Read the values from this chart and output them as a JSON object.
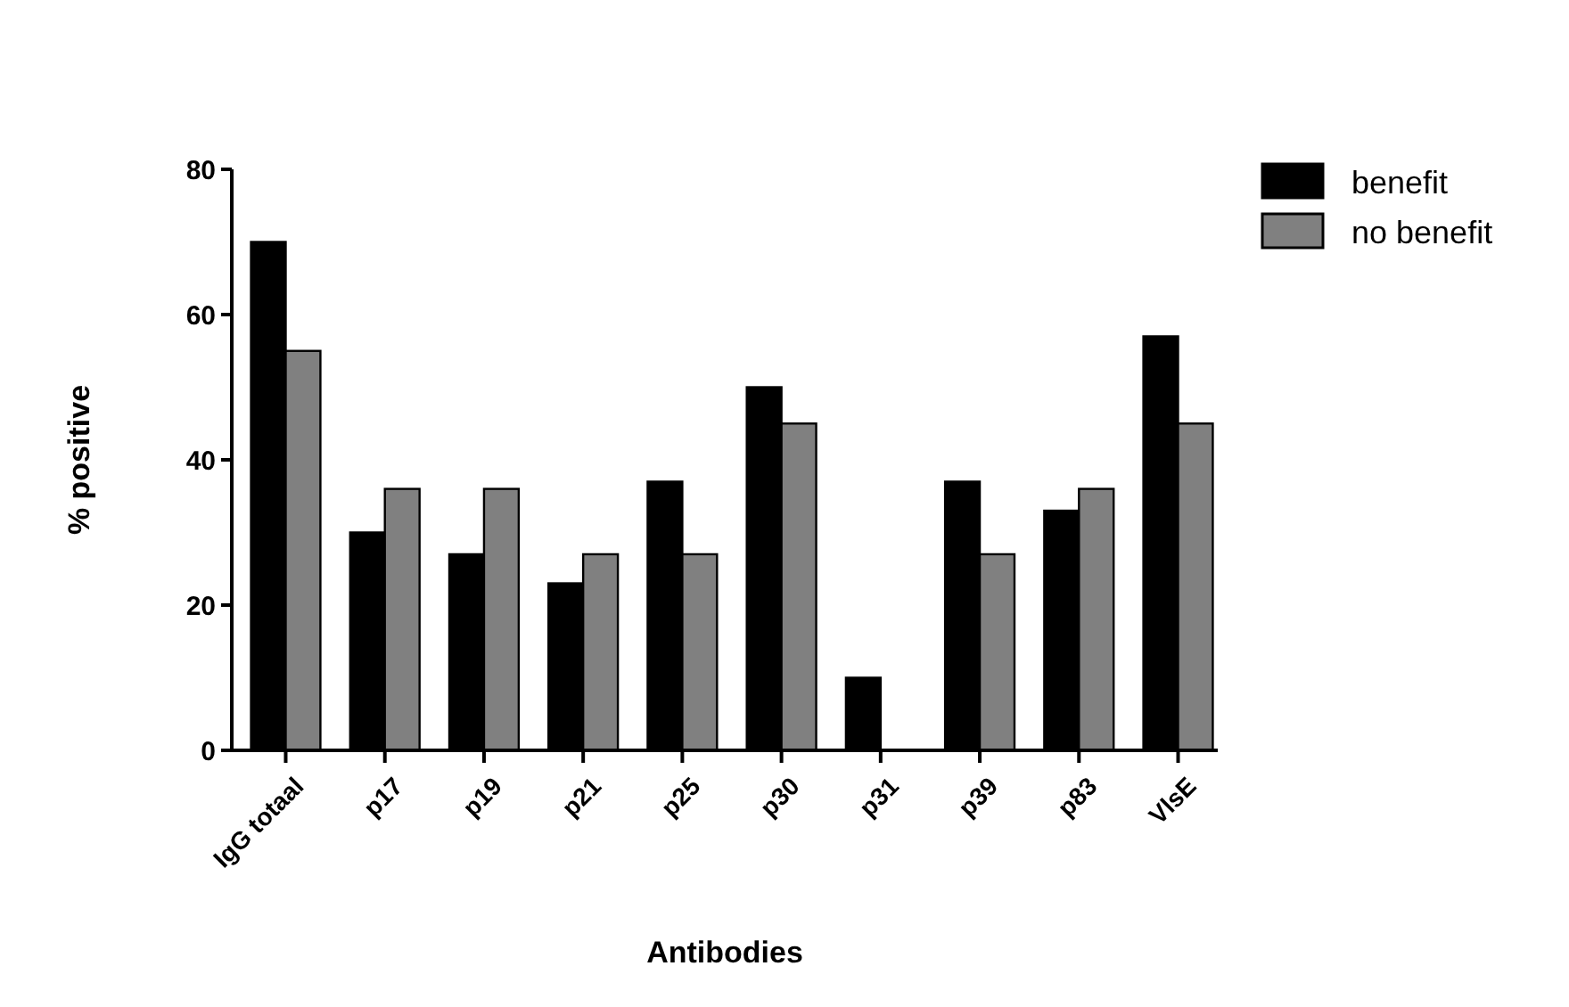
{
  "chart_data": {
    "type": "bar",
    "xlabel": "Antibodies",
    "ylabel": "% positive",
    "categories": [
      "IgG totaal",
      "p17",
      "p19",
      "p21",
      "p25",
      "p30",
      "p31",
      "p39",
      "p83",
      "VlsE"
    ],
    "series": [
      {
        "name": "benefit",
        "color": "#000000",
        "values": [
          70,
          30,
          27,
          23,
          37,
          50,
          10,
          37,
          33,
          57
        ]
      },
      {
        "name": "no benefit",
        "color": "#808080",
        "values": [
          55,
          36,
          36,
          27,
          27,
          45,
          0,
          27,
          36,
          45
        ]
      }
    ],
    "ylim": [
      0,
      80
    ],
    "yticks": [
      0,
      20,
      40,
      60,
      80
    ],
    "grid": false,
    "legend": "top right"
  }
}
